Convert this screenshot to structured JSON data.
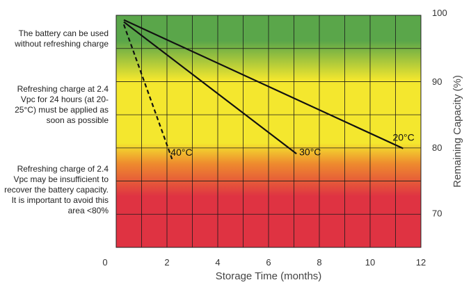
{
  "zones": [
    {
      "text": "The battery can be used without refreshing charge",
      "color": "#5aa64a"
    },
    {
      "text": "Refreshing charge at 2.4 Vpc for 24 hours (at 20-25°C) must be applied as soon as possible",
      "color": "#f4e72e"
    },
    {
      "text": "Refreshing charge of 2.4 Vpc may be insufficient to  recover the battery capacity. It is important to avoid this area <80%",
      "color": "#df3342"
    }
  ],
  "chart_data": {
    "type": "line",
    "xlabel": "Storage Time (months)",
    "ylabel": "Remaining Capacity (%)",
    "xlim": [
      0,
      12
    ],
    "ylim": [
      64.8,
      100
    ],
    "xticks": [
      0,
      2,
      4,
      6,
      8,
      10,
      12
    ],
    "yticks": [
      70,
      80,
      90,
      100
    ],
    "grid": true,
    "series": [
      {
        "name": "20°C",
        "style": "solid",
        "x": [
          0.3,
          11.3
        ],
        "y": [
          99.3,
          79.8
        ]
      },
      {
        "name": "30°C",
        "style": "solid",
        "x": [
          0.3,
          7.1
        ],
        "y": [
          99.0,
          79.0
        ]
      },
      {
        "name": "40°C",
        "style": "dashed",
        "x": [
          0.3,
          2.2
        ],
        "y": [
          98.6,
          78.2
        ]
      }
    ]
  }
}
